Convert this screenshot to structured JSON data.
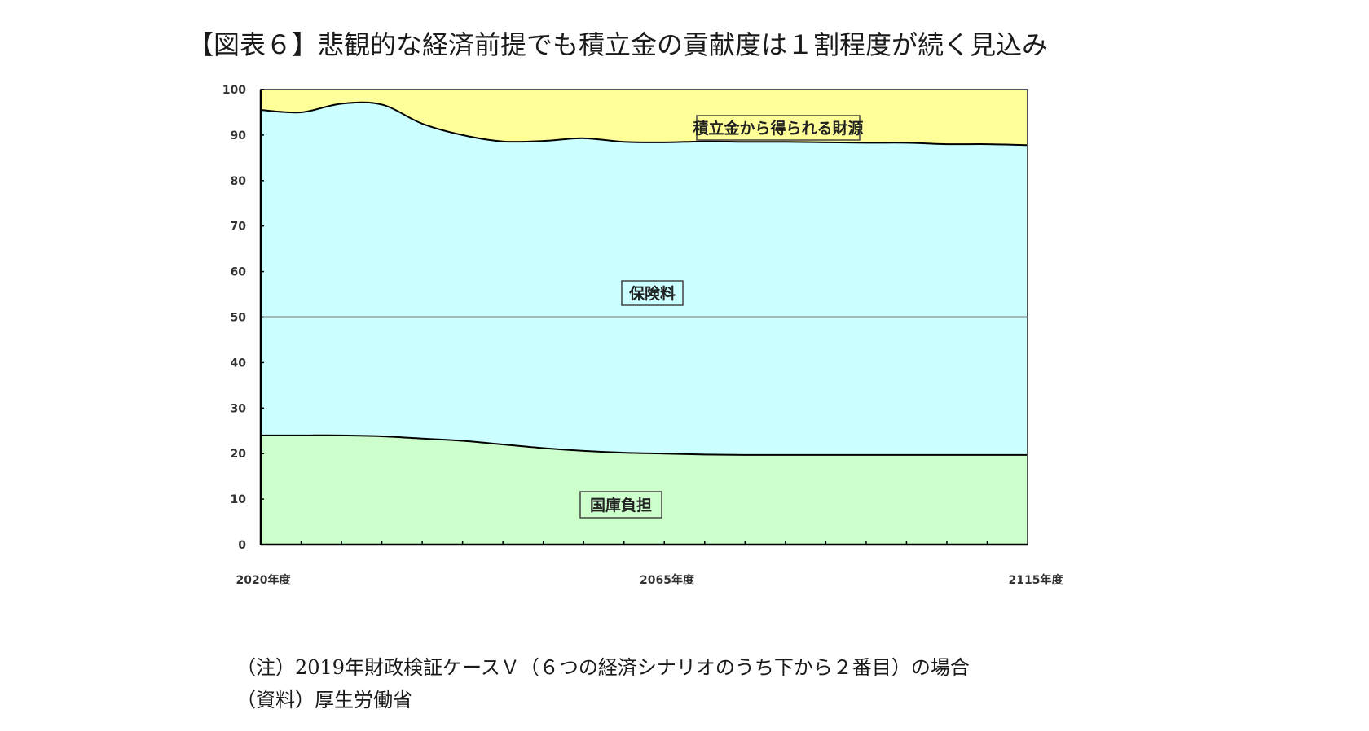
{
  "title": "【図表６】悲観的な経済前提でも積立金の貢献度は１割程度が続く見込み",
  "notes": {
    "note": "（注）2019年財政検証ケースＶ（６つの経済シナリオのうち下から２番目）の場合",
    "source": "（資料）厚生労働省"
  },
  "colors": {
    "reserve_fund": "#ffff99",
    "premiums": "#ccffff",
    "national_treasury": "#ccffcc",
    "axis": "#000000"
  },
  "chart_data": {
    "type": "area",
    "stacked": true,
    "title": "悲観的な経済前提でも積立金の貢献度は１割程度が続く見込み",
    "xlabel": "",
    "ylabel": "",
    "ylim": [
      0,
      100
    ],
    "yticks": [
      0,
      10,
      20,
      30,
      40,
      50,
      60,
      70,
      80,
      90,
      100
    ],
    "xtick_labels": [
      "2020年度",
      "2065年度",
      "2115年度"
    ],
    "x": [
      2020,
      2025,
      2030,
      2035,
      2040,
      2045,
      2050,
      2055,
      2060,
      2065,
      2070,
      2075,
      2080,
      2085,
      2090,
      2095,
      2100,
      2105,
      2110,
      2115
    ],
    "grid": false,
    "legend_position": "inline labels",
    "reference_line": 50,
    "series": [
      {
        "name": "国庫負担",
        "values": [
          24,
          24,
          24,
          23.8,
          23.3,
          22.8,
          22.0,
          21.2,
          20.6,
          20.2,
          20.0,
          19.8,
          19.7,
          19.7,
          19.7,
          19.7,
          19.7,
          19.7,
          19.7,
          19.7
        ]
      },
      {
        "name": "保険料",
        "values": [
          71.5,
          71,
          72.9,
          72.9,
          69.2,
          67.2,
          66.6,
          67.5,
          68.7,
          68.3,
          68.4,
          68.8,
          68.8,
          68.8,
          68.7,
          68.6,
          68.6,
          68.3,
          68.3,
          68.1
        ]
      },
      {
        "name": "積立金から得られる財源",
        "values": [
          4.5,
          5.0,
          3.1,
          3.3,
          7.5,
          10.0,
          11.4,
          11.3,
          10.7,
          11.5,
          11.6,
          11.4,
          11.5,
          11.5,
          11.6,
          11.7,
          11.7,
          12.0,
          12.0,
          12.2
        ]
      }
    ],
    "cumulative_top_lines": {
      "national_treasury_top": [
        24,
        24,
        24,
        23.8,
        23.3,
        22.8,
        22.0,
        21.2,
        20.6,
        20.2,
        20.0,
        19.8,
        19.7,
        19.7,
        19.7,
        19.7,
        19.7,
        19.7,
        19.7,
        19.7
      ],
      "premiums_top": [
        95.5,
        95,
        96.9,
        96.7,
        92.5,
        90.0,
        88.6,
        88.7,
        89.3,
        88.5,
        88.4,
        88.6,
        88.5,
        88.5,
        88.4,
        88.3,
        88.3,
        88.0,
        88.0,
        87.8
      ]
    },
    "annotations": [
      {
        "text": "積立金から得られる財源",
        "region": "top"
      },
      {
        "text": "保険料",
        "region": "middle"
      },
      {
        "text": "国庫負担",
        "region": "bottom"
      }
    ]
  }
}
